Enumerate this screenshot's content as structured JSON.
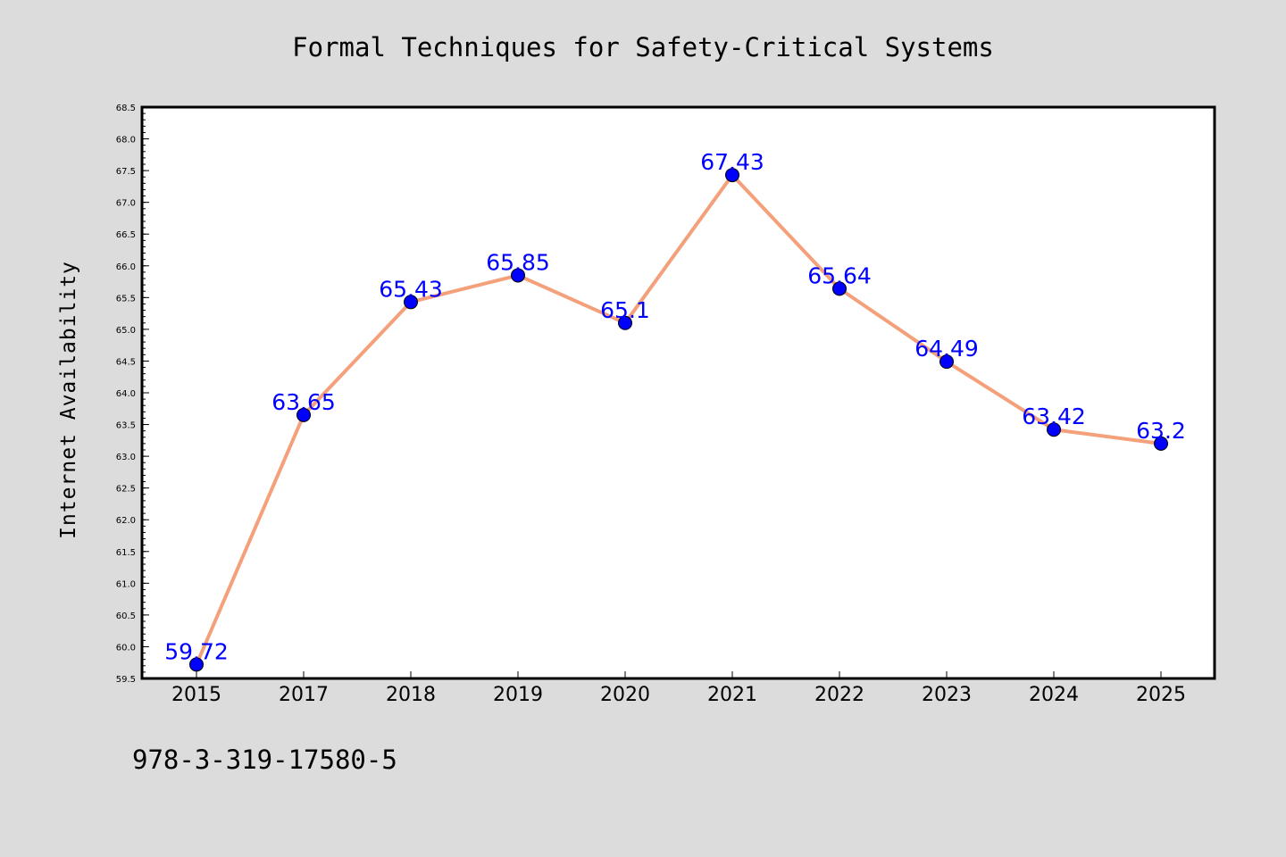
{
  "chart_data": {
    "type": "line",
    "title": "Formal Techniques for Safety-Critical Systems",
    "ylabel": "Internet Availability",
    "xlabel": "",
    "categories": [
      "2015",
      "2017",
      "2018",
      "2019",
      "2020",
      "2021",
      "2022",
      "2023",
      "2024",
      "2025"
    ],
    "series": [
      {
        "values": [
          59.72,
          63.65,
          65.43,
          65.85,
          65.1,
          67.43,
          65.64,
          64.49,
          63.42,
          63.2
        ],
        "labels": [
          "59.72",
          "63.65",
          "65.43",
          "65.85",
          "65.1",
          "67.43",
          "65.64",
          "64.49",
          "63.42",
          "63.2"
        ],
        "line_color": "#f4a07a",
        "marker_color": "#0000ff",
        "label_color": "#0000ff"
      }
    ],
    "ylim": [
      59.5,
      68.5
    ],
    "yticks": [
      "59.5",
      "60.0",
      "60.5",
      "61.0",
      "61.5",
      "62.0",
      "62.5",
      "63.0",
      "63.5",
      "64.0",
      "64.5",
      "65.0",
      "65.5",
      "66.0",
      "66.5",
      "67.0",
      "67.5",
      "68.0",
      "68.5"
    ],
    "grid": false,
    "legend": "none"
  },
  "footnote": "978-3-319-17580-5",
  "colors": {
    "background": "#dcdcdc",
    "plot_background": "#ffffff",
    "axis": "#000000"
  }
}
